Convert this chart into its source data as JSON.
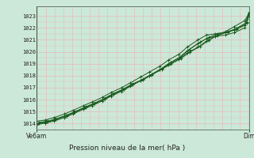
{
  "title": "Pression niveau de la mer( hPa )",
  "xlabel_left": "Ve6am",
  "xlabel_right": "Dim",
  "ylabel_min": 1013.5,
  "ylabel_max": 1023.8,
  "yticks": [
    1014,
    1015,
    1016,
    1017,
    1018,
    1019,
    1020,
    1021,
    1022,
    1023
  ],
  "background_color": "#cce8d8",
  "plot_bg_color": "#cce8d8",
  "grid_h_color": "#e8b8b8",
  "grid_v_color": "#e8b8b8",
  "line_color": "#1a5c20",
  "marker": "+",
  "lines": [
    {
      "x": [
        0.0,
        0.04,
        0.08,
        0.13,
        0.17,
        0.22,
        0.26,
        0.31,
        0.35,
        0.4,
        0.44,
        0.49,
        0.53,
        0.58,
        0.62,
        0.67,
        0.71,
        0.76,
        0.8,
        0.84,
        0.89,
        0.93,
        0.98,
        1.0
      ],
      "y": [
        1014.0,
        1014.1,
        1014.3,
        1014.6,
        1014.9,
        1015.3,
        1015.6,
        1016.0,
        1016.4,
        1016.8,
        1017.2,
        1017.6,
        1018.0,
        1018.5,
        1018.9,
        1019.4,
        1019.9,
        1020.4,
        1020.9,
        1021.3,
        1021.7,
        1022.1,
        1022.6,
        1023.2
      ]
    },
    {
      "x": [
        0.0,
        0.04,
        0.08,
        0.13,
        0.17,
        0.22,
        0.26,
        0.31,
        0.35,
        0.4,
        0.44,
        0.49,
        0.53,
        0.58,
        0.62,
        0.67,
        0.71,
        0.76,
        0.8,
        0.84,
        0.89,
        0.93,
        0.98,
        1.0
      ],
      "y": [
        1013.9,
        1014.05,
        1014.2,
        1014.5,
        1014.8,
        1015.2,
        1015.5,
        1015.9,
        1016.3,
        1016.7,
        1017.1,
        1017.6,
        1018.0,
        1018.5,
        1019.0,
        1019.5,
        1020.1,
        1020.7,
        1021.1,
        1021.3,
        1021.4,
        1021.6,
        1022.0,
        1023.0
      ]
    },
    {
      "x": [
        0.01,
        0.05,
        0.09,
        0.14,
        0.18,
        0.23,
        0.27,
        0.32,
        0.36,
        0.41,
        0.45,
        0.5,
        0.54,
        0.59,
        0.63,
        0.68,
        0.72,
        0.77,
        0.81,
        0.85,
        0.9,
        0.94,
        0.99,
        1.0
      ],
      "y": [
        1014.05,
        1014.15,
        1014.35,
        1014.65,
        1014.95,
        1015.35,
        1015.65,
        1016.05,
        1016.45,
        1016.85,
        1017.25,
        1017.65,
        1018.05,
        1018.55,
        1018.95,
        1019.45,
        1019.95,
        1020.45,
        1020.95,
        1021.35,
        1021.65,
        1021.95,
        1022.45,
        1023.1
      ]
    },
    {
      "x": [
        0.01,
        0.05,
        0.09,
        0.14,
        0.18,
        0.23,
        0.27,
        0.32,
        0.36,
        0.41,
        0.45,
        0.5,
        0.54,
        0.59,
        0.63,
        0.68,
        0.72,
        0.77,
        0.81,
        0.85,
        0.9,
        0.94,
        0.99,
        1.0
      ],
      "y": [
        1014.1,
        1014.2,
        1014.4,
        1014.7,
        1015.0,
        1015.4,
        1015.7,
        1016.1,
        1016.5,
        1016.9,
        1017.3,
        1017.7,
        1018.1,
        1018.6,
        1019.1,
        1019.6,
        1020.2,
        1020.8,
        1021.2,
        1021.5,
        1021.7,
        1021.9,
        1022.4,
        1023.15
      ]
    },
    {
      "x": [
        0.0,
        0.04,
        0.08,
        0.13,
        0.17,
        0.22,
        0.26,
        0.31,
        0.35,
        0.4,
        0.44,
        0.49,
        0.53,
        0.58,
        0.62,
        0.67,
        0.71,
        0.76,
        0.8,
        0.84,
        0.89,
        0.93,
        0.98,
        1.0
      ],
      "y": [
        1014.2,
        1014.3,
        1014.5,
        1014.8,
        1015.1,
        1015.5,
        1015.8,
        1016.2,
        1016.6,
        1017.0,
        1017.4,
        1017.9,
        1018.3,
        1018.8,
        1019.3,
        1019.8,
        1020.4,
        1021.0,
        1021.4,
        1021.5,
        1021.6,
        1021.8,
        1022.2,
        1023.3
      ]
    }
  ]
}
